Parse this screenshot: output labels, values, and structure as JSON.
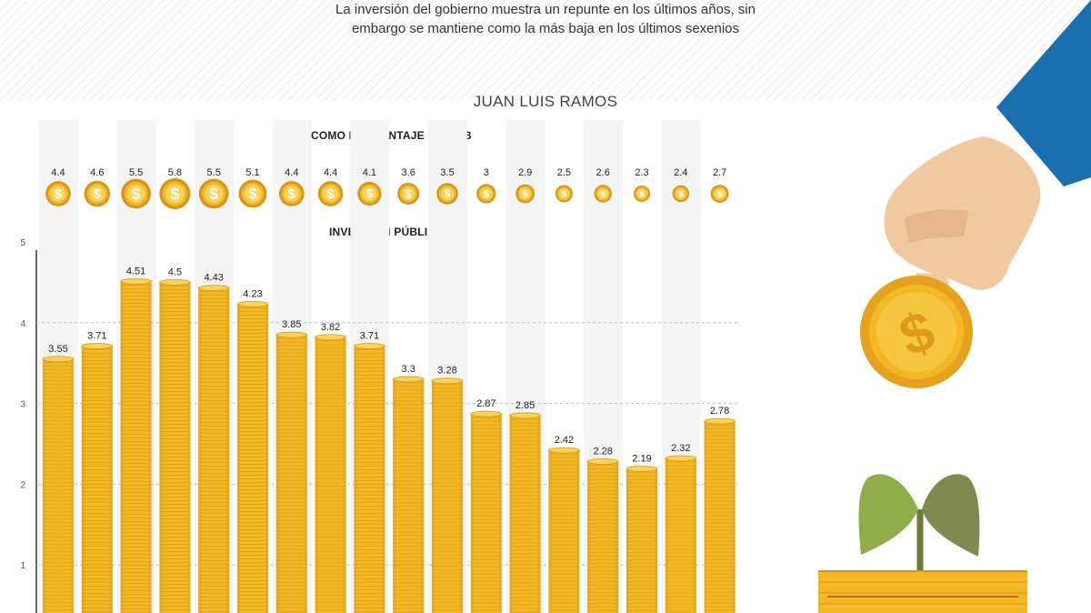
{
  "header": {
    "subtitle_line1": "La inversión del gobierno muestra un repunte en los últimos años, sin",
    "subtitle_line2": "embargo se mantiene como la más baja en los últimos sexenios",
    "author": "JUAN LUIS RAMOS"
  },
  "colors": {
    "coin": "#f2b924",
    "coin_dark": "#d9941a",
    "coin_light": "#f9d45c",
    "column_shade": "#f5f5f5",
    "sleeve": "#1a6fae",
    "skin": "#f0c9a0",
    "leaf_left": "#8fae4a",
    "leaf_right": "#7f8a50"
  },
  "chart_data": [
    {
      "type": "table",
      "title": "COMO PORCENTAJE DEL PIB",
      "values": [
        4.4,
        4.6,
        5.5,
        5.8,
        5.5,
        5.1,
        4.4,
        4.4,
        4.1,
        3.6,
        3.5,
        3,
        2.9,
        2.5,
        2.6,
        2.3,
        2.4,
        2.7
      ],
      "labels": [
        "4.4",
        "4.6",
        "5.5",
        "5.8",
        "5.5",
        "5.1",
        "4.4",
        "4.4",
        "4.1",
        "3.6",
        "3.5",
        "3",
        "2.9",
        "2.5",
        "2.6",
        "2.3",
        "2.4",
        "2.7"
      ]
    },
    {
      "type": "bar",
      "title": "INVERSIÓN PÚBLICA*",
      "values": [
        3.55,
        3.71,
        4.51,
        4.5,
        4.43,
        4.23,
        3.85,
        3.82,
        3.71,
        3.3,
        3.28,
        2.87,
        2.85,
        2.42,
        2.28,
        2.19,
        2.32,
        2.78
      ],
      "labels": [
        "3.55",
        "3.71",
        "4.51",
        "4.5",
        "4.43",
        "4.23",
        "3.85",
        "3.82",
        "3.71",
        "3.3",
        "3.28",
        "2.87",
        "2.85",
        "2.42",
        "2.28",
        "2.19",
        "2.32",
        "2.78"
      ],
      "yticks": [
        "1",
        "2",
        "3",
        "4",
        "5"
      ],
      "ylim": [
        0,
        5
      ],
      "grid": true
    }
  ]
}
